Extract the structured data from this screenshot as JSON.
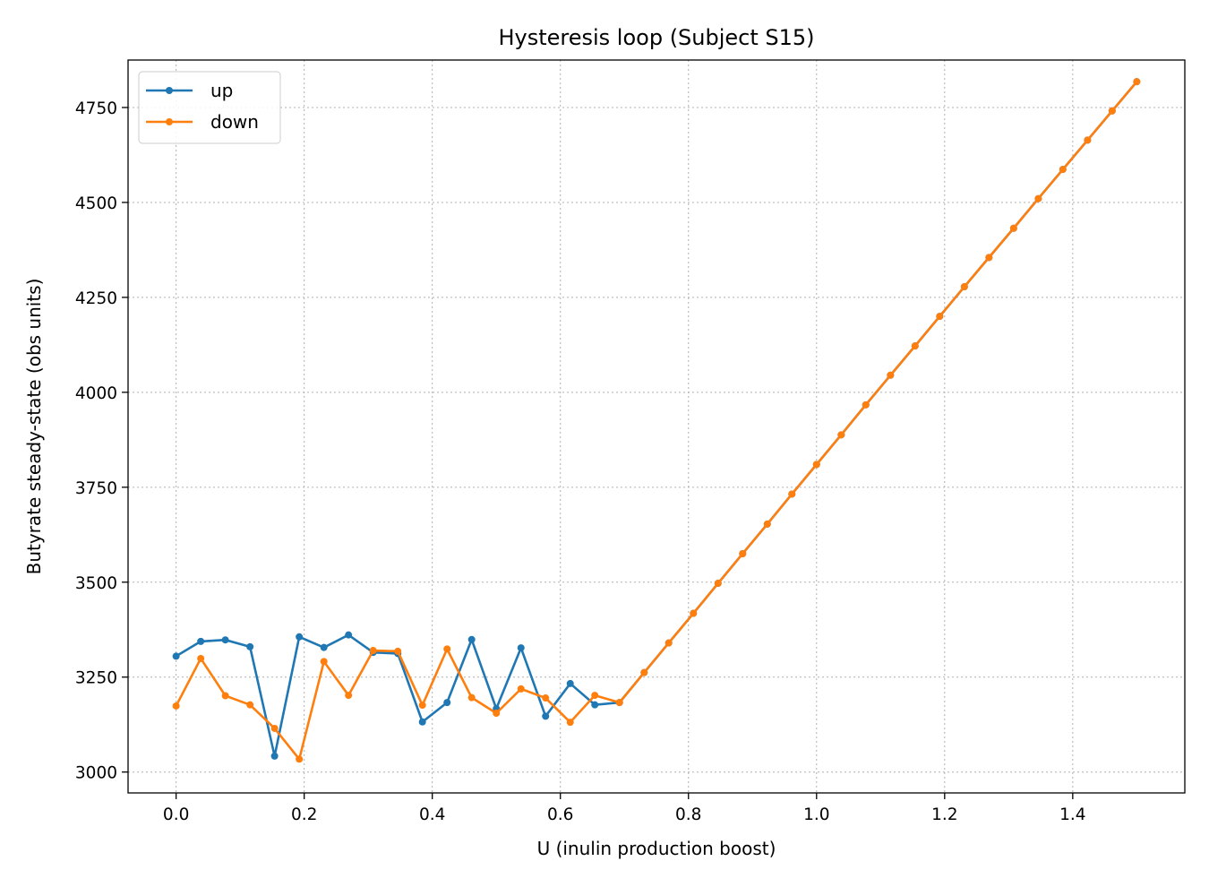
{
  "chart_data": {
    "type": "line",
    "title": "Hysteresis loop (Subject S15)",
    "xlabel": "U (inulin production boost)",
    "ylabel": "Butyrate steady-state (obs units)",
    "xlim": [
      -0.075,
      1.575
    ],
    "ylim": [
      2945,
      4875
    ],
    "xticks": [
      "0.0",
      "0.2",
      "0.4",
      "0.6",
      "0.8",
      "1.0",
      "1.2",
      "1.4"
    ],
    "yticks": [
      "3000",
      "3250",
      "3500",
      "3750",
      "4000",
      "4250",
      "4500",
      "4750"
    ],
    "grid": true,
    "legend_position": "top-left",
    "x": [
      0.0,
      0.0385,
      0.0769,
      0.1154,
      0.1538,
      0.1923,
      0.2308,
      0.2692,
      0.3077,
      0.3462,
      0.3846,
      0.4231,
      0.4615,
      0.5,
      0.5385,
      0.5769,
      0.6154,
      0.6538,
      0.6923,
      0.7308,
      0.7692,
      0.8077,
      0.8462,
      0.8846,
      0.9231,
      0.9615,
      1.0,
      1.0385,
      1.0769,
      1.1154,
      1.1538,
      1.1923,
      1.2308,
      1.2692,
      1.3077,
      1.3462,
      1.3846,
      1.4231,
      1.4615,
      1.5
    ],
    "series": [
      {
        "name": "up",
        "color": "#1f77b4",
        "values": [
          3305,
          3344,
          3348,
          3330,
          3042,
          3356,
          3328,
          3361,
          3315,
          3312,
          3132,
          3183,
          3349,
          3167,
          3327,
          3147,
          3233,
          3177,
          3183,
          3262,
          3340,
          3418,
          3497,
          3575,
          3653,
          3732,
          3810,
          3888,
          3967,
          4045,
          4122,
          4200,
          4278,
          4355,
          4432,
          4510,
          4587,
          4664,
          4741,
          4818
        ]
      },
      {
        "name": "down",
        "color": "#ff7f0e",
        "values": [
          3174,
          3299,
          3201,
          3177,
          3115,
          3034,
          3291,
          3202,
          3320,
          3318,
          3176,
          3324,
          3196,
          3155,
          3219,
          3195,
          3131,
          3202,
          3183,
          3262,
          3340,
          3418,
          3497,
          3575,
          3653,
          3732,
          3810,
          3888,
          3967,
          4045,
          4122,
          4200,
          4278,
          4355,
          4432,
          4510,
          4587,
          4664,
          4741,
          4818
        ]
      }
    ]
  }
}
